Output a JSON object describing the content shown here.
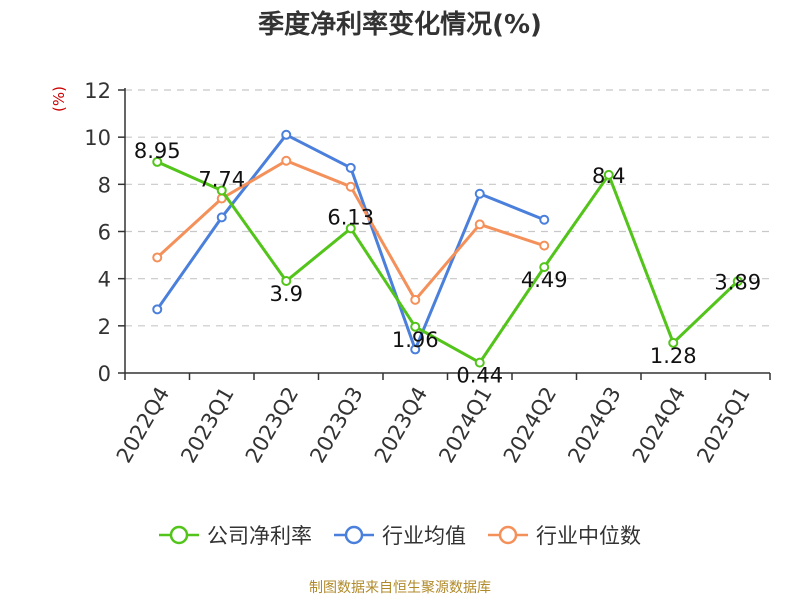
{
  "chart_data": {
    "type": "line",
    "title": "季度净利率变化情况(%)",
    "ylabel": "(%)",
    "categories": [
      "2022Q4",
      "2023Q1",
      "2023Q2",
      "2023Q3",
      "2023Q4",
      "2024Q1",
      "2024Q2",
      "2024Q3",
      "2024Q4",
      "2025Q1"
    ],
    "yticks": [
      "0",
      "2",
      "4",
      "6",
      "8",
      "10",
      "12"
    ],
    "ylim": [
      0,
      12
    ],
    "grid": "horizontal-dashed",
    "legend_position": "bottom",
    "series": [
      {
        "name": "公司净利率",
        "color": "#52c41a",
        "values": [
          8.95,
          7.74,
          3.9,
          6.13,
          1.96,
          0.44,
          4.49,
          8.4,
          1.28,
          3.89
        ],
        "labels": [
          "8.95",
          "7.74",
          "3.9",
          "6.13",
          "1.96",
          "0.44",
          "4.49",
          "8.4",
          "1.28",
          "3.89"
        ]
      },
      {
        "name": "行业均值",
        "color": "#4a7fdc",
        "values": [
          2.7,
          6.6,
          10.1,
          8.7,
          1.0,
          7.6,
          6.5,
          null,
          null,
          null
        ]
      },
      {
        "name": "行业中位数",
        "color": "#f4905a",
        "values": [
          4.9,
          7.4,
          9.0,
          7.9,
          3.1,
          6.3,
          5.4,
          null,
          null,
          null
        ]
      }
    ]
  },
  "footer": {
    "source": "制图数据来自恒生聚源数据库"
  }
}
